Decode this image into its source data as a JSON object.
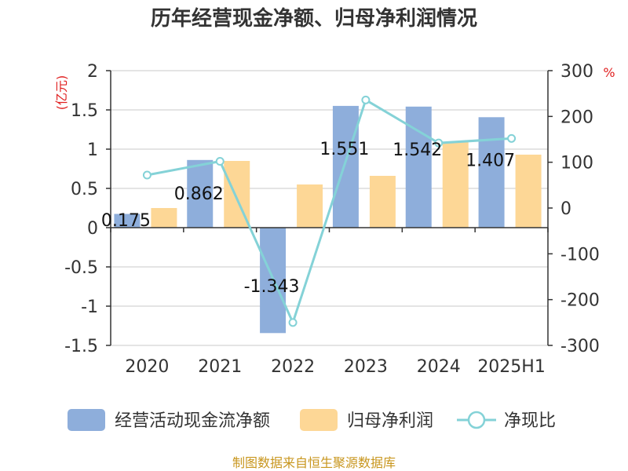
{
  "chart_data": {
    "type": "bar",
    "title": "历年经营现金净额、归母净利润情况",
    "categories": [
      "2020",
      "2021",
      "2022",
      "2023",
      "2024",
      "2025H1"
    ],
    "left_axis": {
      "unit": "(亿元)",
      "ylim": [
        -1.5,
        2
      ],
      "ticks": [
        "2",
        "1.5",
        "1",
        "0.5",
        "0",
        "-0.5",
        "-1",
        "-1.5"
      ]
    },
    "right_axis": {
      "unit": "%",
      "ylim": [
        -300,
        300
      ],
      "ticks": [
        "300",
        "200",
        "100",
        "0",
        "-100",
        "-200",
        "-300"
      ]
    },
    "series": [
      {
        "name": "经营活动现金流净额",
        "type": "bar",
        "axis": "left",
        "color": "#8eaedb",
        "values": [
          0.175,
          0.862,
          -1.343,
          1.551,
          1.542,
          1.407
        ],
        "labels": [
          "0.175",
          "0.862",
          "-1.343",
          "1.551",
          "1.542",
          "1.407"
        ]
      },
      {
        "name": "归母净利润",
        "type": "bar",
        "axis": "left",
        "color": "#fdd796",
        "values": [
          0.25,
          0.85,
          0.55,
          0.66,
          1.09,
          0.93
        ]
      },
      {
        "name": "净现比",
        "type": "line",
        "axis": "right",
        "color": "#84d2d7",
        "values": [
          72,
          102,
          -250,
          236,
          142,
          152
        ]
      }
    ],
    "grid": true,
    "legend": "bottom"
  },
  "footer": {
    "source": "制图数据来自恒生聚源数据库"
  }
}
